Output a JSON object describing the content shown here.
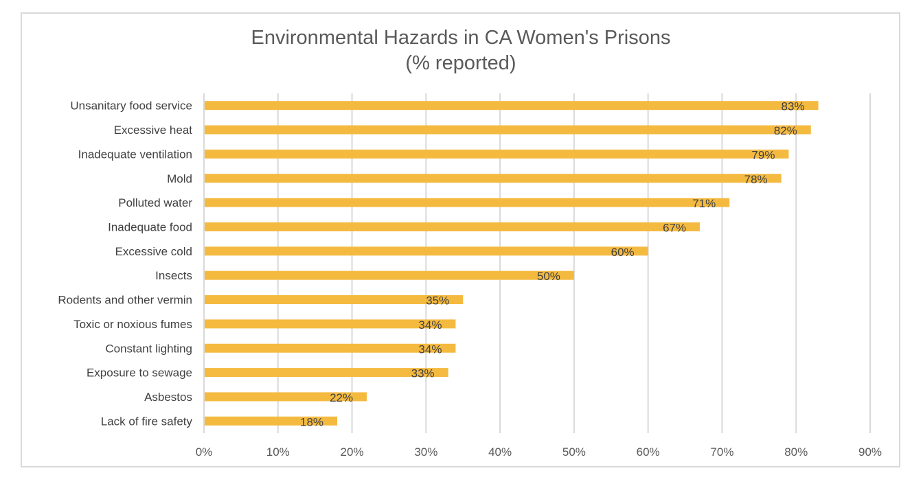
{
  "chart_data": {
    "type": "bar",
    "orientation": "horizontal",
    "title": "Environmental Hazards in CA Women's Prisons",
    "subtitle": "(% reported)",
    "xlabel": "",
    "ylabel": "",
    "xlim": [
      0,
      90
    ],
    "x_ticks": [
      0,
      10,
      20,
      30,
      40,
      50,
      60,
      70,
      80,
      90
    ],
    "x_tick_labels": [
      "0%",
      "10%",
      "20%",
      "30%",
      "40%",
      "50%",
      "60%",
      "70%",
      "80%",
      "90%"
    ],
    "grid": "vertical",
    "legend": "none",
    "bar_color": "#F4BA40",
    "categories": [
      "Unsanitary food service",
      "Excessive heat",
      "Inadequate ventilation",
      "Mold",
      "Polluted water",
      "Inadequate food",
      "Excessive cold",
      "Insects",
      "Rodents and other vermin",
      "Toxic or noxious fumes",
      "Constant lighting",
      "Exposure to sewage",
      "Asbestos",
      "Lack of fire safety"
    ],
    "values": [
      83,
      82,
      79,
      78,
      71,
      67,
      60,
      50,
      35,
      34,
      34,
      33,
      22,
      18
    ],
    "data_labels": [
      "83%",
      "82%",
      "79%",
      "78%",
      "71%",
      "67%",
      "60%",
      "50%",
      "35%",
      "34%",
      "34%",
      "33%",
      "22%",
      "18%"
    ]
  }
}
